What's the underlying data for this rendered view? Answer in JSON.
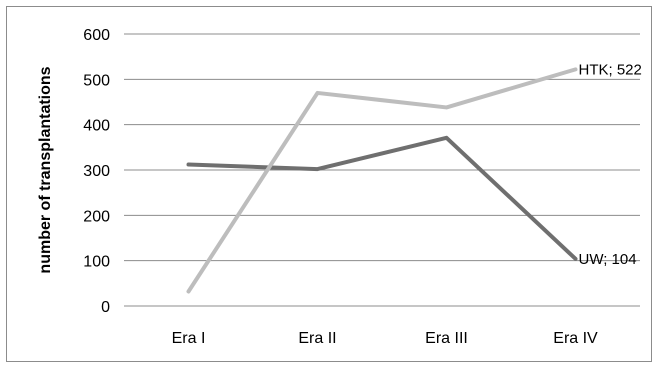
{
  "chart_data": {
    "type": "line",
    "categories": [
      "Era I",
      "Era II",
      "Era III",
      "Era IV"
    ],
    "ylabel": "number of transplantations",
    "ylim": [
      0,
      600
    ],
    "yticks": [
      0,
      100,
      200,
      300,
      400,
      500,
      600
    ],
    "grid": true,
    "series": [
      {
        "key": "uw",
        "values": [
          312,
          302,
          371,
          104
        ],
        "color": "#6f6f6f",
        "end_label": "UW; 104"
      },
      {
        "key": "htk",
        "values": [
          32,
          470,
          438,
          522
        ],
        "color": "#bdbdbd",
        "end_label": "HTK; 522"
      }
    ]
  }
}
